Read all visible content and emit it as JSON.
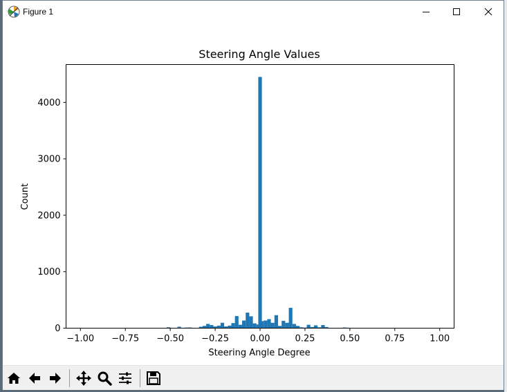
{
  "window": {
    "title": "Figure 1"
  },
  "chart_data": {
    "type": "bar",
    "title": "Steering Angle Values",
    "xlabel": "Steering Angle Degree",
    "ylabel": "Count",
    "xlim": [
      -1.08,
      1.08
    ],
    "ylim": [
      0,
      4670
    ],
    "xticks": [
      -1.0,
      -0.75,
      -0.5,
      -0.25,
      0.0,
      0.25,
      0.5,
      0.75,
      1.0
    ],
    "xtick_labels": [
      "−1.00",
      "−0.75",
      "−0.50",
      "−0.25",
      "0.00",
      "0.25",
      "0.50",
      "0.75",
      "1.00"
    ],
    "yticks": [
      0,
      1000,
      2000,
      3000,
      4000
    ],
    "ytick_labels": [
      "0",
      "1000",
      "2000",
      "3000",
      "4000"
    ],
    "bin_width": 0.02,
    "bins": [
      {
        "x": -0.51,
        "value": 15
      },
      {
        "x": -0.45,
        "value": 25
      },
      {
        "x": -0.41,
        "value": 10
      },
      {
        "x": -0.39,
        "value": 12
      },
      {
        "x": -0.33,
        "value": 25
      },
      {
        "x": -0.31,
        "value": 40
      },
      {
        "x": -0.29,
        "value": 75
      },
      {
        "x": -0.27,
        "value": 55
      },
      {
        "x": -0.25,
        "value": 30
      },
      {
        "x": -0.23,
        "value": 45
      },
      {
        "x": -0.21,
        "value": 95
      },
      {
        "x": -0.19,
        "value": 30
      },
      {
        "x": -0.17,
        "value": 45
      },
      {
        "x": -0.15,
        "value": 90
      },
      {
        "x": -0.13,
        "value": 215
      },
      {
        "x": -0.11,
        "value": 60
      },
      {
        "x": -0.09,
        "value": 135
      },
      {
        "x": -0.07,
        "value": 275
      },
      {
        "x": -0.05,
        "value": 210
      },
      {
        "x": -0.03,
        "value": 85
      },
      {
        "x": -0.01,
        "value": 65
      },
      {
        "x": 0.0,
        "value": 4450
      },
      {
        "x": 0.01,
        "value": 125
      },
      {
        "x": 0.03,
        "value": 135
      },
      {
        "x": 0.05,
        "value": 160
      },
      {
        "x": 0.07,
        "value": 95
      },
      {
        "x": 0.09,
        "value": 230
      },
      {
        "x": 0.11,
        "value": 40
      },
      {
        "x": 0.13,
        "value": 130
      },
      {
        "x": 0.15,
        "value": 95
      },
      {
        "x": 0.17,
        "value": 360
      },
      {
        "x": 0.19,
        "value": 75
      },
      {
        "x": 0.21,
        "value": 40
      },
      {
        "x": 0.23,
        "value": 15
      },
      {
        "x": 0.25,
        "value": 10
      },
      {
        "x": 0.27,
        "value": 60
      },
      {
        "x": 0.29,
        "value": 20
      },
      {
        "x": 0.31,
        "value": 50
      },
      {
        "x": 0.33,
        "value": 15
      },
      {
        "x": 0.35,
        "value": 55
      },
      {
        "x": 0.37,
        "value": 20
      },
      {
        "x": 0.47,
        "value": 12
      },
      {
        "x": 0.49,
        "value": 8
      }
    ],
    "color": "#1f77b4",
    "grid": false
  },
  "toolbar": {
    "buttons": [
      {
        "name": "home-button",
        "icon": "home-icon"
      },
      {
        "name": "back-button",
        "icon": "arrow-left-icon"
      },
      {
        "name": "forward-button",
        "icon": "arrow-right-icon"
      },
      {
        "name": "pan-button",
        "icon": "move-icon"
      },
      {
        "name": "zoom-button",
        "icon": "magnifier-icon"
      },
      {
        "name": "configure-subplots-button",
        "icon": "sliders-icon"
      },
      {
        "name": "save-button",
        "icon": "floppy-icon"
      }
    ]
  }
}
